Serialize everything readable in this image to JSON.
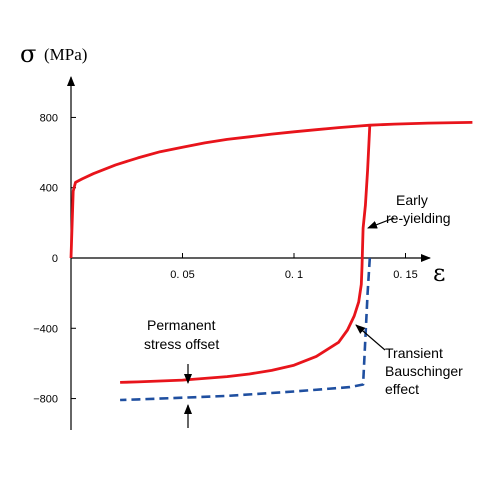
{
  "chart_data": {
    "type": "line",
    "ylabel_symbol": "σ",
    "ylabel_unit": "(MPa)",
    "xlabel_symbol": "ε",
    "xlim": [
      0,
      0.18
    ],
    "ylim": [
      -900,
      1000
    ],
    "x_ticks": [
      {
        "value": 0.05,
        "label": "0. 05"
      },
      {
        "value": 0.1,
        "label": "0. 1"
      },
      {
        "value": 0.15,
        "label": "0. 15"
      }
    ],
    "y_ticks": [
      {
        "value": 800,
        "label": "800"
      },
      {
        "value": 400,
        "label": "400"
      },
      {
        "value": 0,
        "label": "0"
      },
      {
        "value": -400,
        "label": "−400"
      },
      {
        "value": -800,
        "label": "−800"
      }
    ],
    "grid": false,
    "colors": {
      "red_series": "#e8141b",
      "blue_series": "#1f4fa0"
    },
    "series": [
      {
        "style": "solid",
        "color": "red",
        "points": [
          [
            0,
            0
          ],
          [
            0.001,
            380
          ],
          [
            0.002,
            430
          ],
          [
            0.005,
            450
          ],
          [
            0.01,
            480
          ],
          [
            0.02,
            530
          ],
          [
            0.03,
            570
          ],
          [
            0.04,
            605
          ],
          [
            0.05,
            630
          ],
          [
            0.06,
            655
          ],
          [
            0.07,
            675
          ],
          [
            0.08,
            690
          ],
          [
            0.09,
            705
          ],
          [
            0.1,
            718
          ],
          [
            0.11,
            730
          ],
          [
            0.12,
            742
          ],
          [
            0.13,
            752
          ],
          [
            0.134,
            756
          ],
          [
            0.145,
            762
          ],
          [
            0.16,
            768
          ],
          [
            0.18,
            772
          ]
        ]
      },
      {
        "style": "solid",
        "color": "red",
        "points": [
          [
            0.134,
            756
          ],
          [
            0.133,
            500
          ],
          [
            0.132,
            300
          ],
          [
            0.131,
            170
          ],
          [
            0.1305,
            -50
          ],
          [
            0.1302,
            -150
          ],
          [
            0.129,
            -250
          ],
          [
            0.127,
            -330
          ],
          [
            0.124,
            -410
          ],
          [
            0.12,
            -480
          ],
          [
            0.11,
            -560
          ],
          [
            0.1,
            -610
          ],
          [
            0.09,
            -640
          ],
          [
            0.08,
            -660
          ],
          [
            0.07,
            -675
          ],
          [
            0.06,
            -685
          ],
          [
            0.05,
            -695
          ],
          [
            0.04,
            -700
          ],
          [
            0.03,
            -705
          ],
          [
            0.022,
            -708
          ]
        ]
      },
      {
        "style": "dashed",
        "color": "blue",
        "points": [
          [
            0.134,
            0
          ],
          [
            0.133,
            -200
          ],
          [
            0.131,
            -720
          ],
          [
            0.125,
            -735
          ],
          [
            0.1,
            -760
          ],
          [
            0.07,
            -785
          ],
          [
            0.05,
            -795
          ],
          [
            0.03,
            -805
          ],
          [
            0.022,
            -808
          ]
        ]
      }
    ],
    "annotations": [
      {
        "lines": [
          "Early",
          "re-yielding"
        ]
      },
      {
        "lines": [
          "Transient",
          "Bauschinger",
          "effect"
        ]
      },
      {
        "lines": [
          "Permanent",
          "stress offset"
        ]
      }
    ]
  }
}
